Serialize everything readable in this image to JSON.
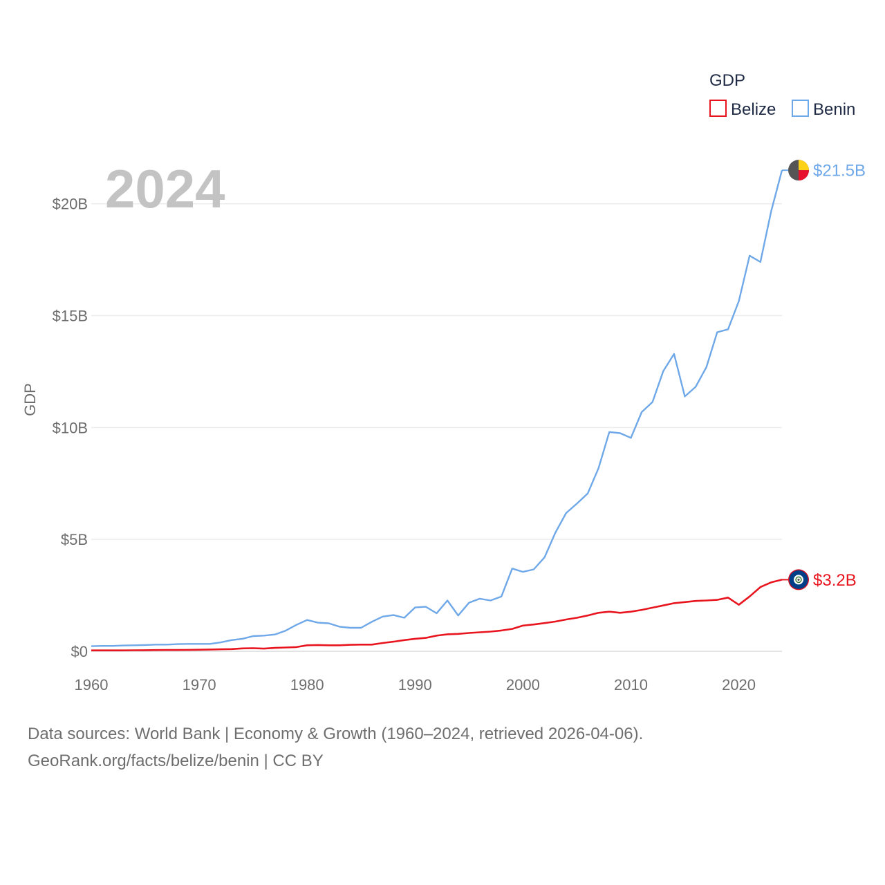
{
  "chart_data": {
    "type": "line",
    "year_label": "2024",
    "ylabel": "GDP",
    "xlabel": "",
    "xlim": [
      1960,
      2024
    ],
    "ylim": [
      0,
      22000000000
    ],
    "x_ticks": [
      {
        "value": 1960,
        "label": "1960"
      },
      {
        "value": 1970,
        "label": "1970"
      },
      {
        "value": 1980,
        "label": "1980"
      },
      {
        "value": 1990,
        "label": "1990"
      },
      {
        "value": 2000,
        "label": "2000"
      },
      {
        "value": 2010,
        "label": "2010"
      },
      {
        "value": 2020,
        "label": "2020"
      }
    ],
    "y_ticks": [
      {
        "value": 0,
        "label": "$0"
      },
      {
        "value": 5000000000,
        "label": "$5B"
      },
      {
        "value": 10000000000,
        "label": "$10B"
      },
      {
        "value": 15000000000,
        "label": "$15B"
      },
      {
        "value": 20000000000,
        "label": "$20B"
      }
    ],
    "legend": {
      "title": "GDP",
      "position": "top-right"
    },
    "x": [
      1960,
      1961,
      1962,
      1963,
      1964,
      1965,
      1966,
      1967,
      1968,
      1969,
      1970,
      1971,
      1972,
      1973,
      1974,
      1975,
      1976,
      1977,
      1978,
      1979,
      1980,
      1981,
      1982,
      1983,
      1984,
      1985,
      1986,
      1987,
      1988,
      1989,
      1990,
      1991,
      1992,
      1993,
      1994,
      1995,
      1996,
      1997,
      1998,
      1999,
      2000,
      2001,
      2002,
      2003,
      2004,
      2005,
      2006,
      2007,
      2008,
      2009,
      2010,
      2011,
      2012,
      2013,
      2014,
      2015,
      2016,
      2017,
      2018,
      2019,
      2020,
      2021,
      2022,
      2023,
      2024
    ],
    "series": [
      {
        "name": "Belize",
        "color": "#e8151f",
        "end_label": "$3.2B",
        "flag_icon": "belize-flag-icon",
        "values": [
          0.04,
          0.04,
          0.04,
          0.04,
          0.045,
          0.05,
          0.055,
          0.06,
          0.06,
          0.065,
          0.07,
          0.08,
          0.09,
          0.1,
          0.13,
          0.14,
          0.12,
          0.15,
          0.17,
          0.19,
          0.27,
          0.28,
          0.27,
          0.27,
          0.29,
          0.3,
          0.3,
          0.37,
          0.43,
          0.5,
          0.56,
          0.6,
          0.7,
          0.76,
          0.78,
          0.82,
          0.85,
          0.88,
          0.93,
          1.0,
          1.15,
          1.2,
          1.26,
          1.33,
          1.42,
          1.5,
          1.6,
          1.72,
          1.77,
          1.72,
          1.77,
          1.85,
          1.95,
          2.05,
          2.15,
          2.2,
          2.25,
          2.27,
          2.3,
          2.4,
          2.08,
          2.45,
          2.87,
          3.08,
          3.2
        ]
      },
      {
        "name": "Benin",
        "color": "#6fa8e8",
        "end_label": "$21.5B",
        "flag_icon": "benin-flag-icon",
        "values": [
          0.23,
          0.24,
          0.24,
          0.26,
          0.27,
          0.28,
          0.3,
          0.3,
          0.32,
          0.33,
          0.33,
          0.33,
          0.4,
          0.5,
          0.56,
          0.68,
          0.7,
          0.75,
          0.92,
          1.18,
          1.4,
          1.28,
          1.25,
          1.1,
          1.05,
          1.05,
          1.32,
          1.55,
          1.62,
          1.5,
          1.96,
          1.99,
          1.7,
          2.27,
          1.6,
          2.17,
          2.35,
          2.27,
          2.45,
          3.7,
          3.55,
          3.66,
          4.2,
          5.3,
          6.18,
          6.6,
          7.05,
          8.18,
          9.8,
          9.75,
          9.54,
          10.69,
          11.14,
          12.52,
          13.29,
          11.39,
          11.82,
          12.7,
          14.26,
          14.39,
          15.65,
          17.68,
          17.4,
          19.67,
          21.5
        ]
      }
    ]
  },
  "footer": {
    "source_line": "Data sources: World Bank | Economy & Growth (1960–2024, retrieved 2026-04-06).",
    "credit_line": "GeoRank.org/facts/belize/benin | CC BY"
  }
}
